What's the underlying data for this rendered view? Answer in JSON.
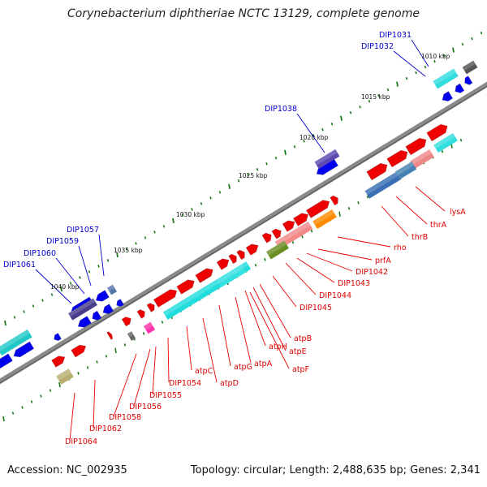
{
  "title": "Corynebacterium diphtheriae NCTC 13129, complete genome",
  "footer": {
    "accession": "Accession: NC_002935",
    "summary": "Topology: circular; Length: 2,488,635 bp; Genes: 2,341"
  },
  "colors": {
    "backbone": "#808080",
    "forward_gene": "#ee0000",
    "reverse_gene": "#0000ee",
    "label_red": "#dd0000",
    "label_blue": "#0000cc",
    "cyan": "#22dddd",
    "tick": "#1a7a1a"
  },
  "scale": {
    "tick_labels": [
      "1010 kbp",
      "1015 kbp",
      "1020 kbp",
      "1025 kbp",
      "1030 kbp",
      "1035 kbp",
      "1040 kbp"
    ]
  },
  "labels": {
    "blue": [
      "DIP1031",
      "DIP1032",
      "DIP1038",
      "DIP1057",
      "DIP1059",
      "DIP1060",
      "DIP1061"
    ],
    "red": [
      "lysA",
      "thrA",
      "thrB",
      "rho",
      "prfA",
      "DIP1042",
      "DIP1043",
      "DIP1044",
      "DIP1045",
      "atpB",
      "atpE",
      "atpH",
      "atpF",
      "atpA",
      "atpG",
      "atpD",
      "atpC",
      "DIP1054",
      "DIP1055",
      "DIP1056",
      "DIP1058",
      "DIP1062",
      "DIP1064"
    ]
  }
}
